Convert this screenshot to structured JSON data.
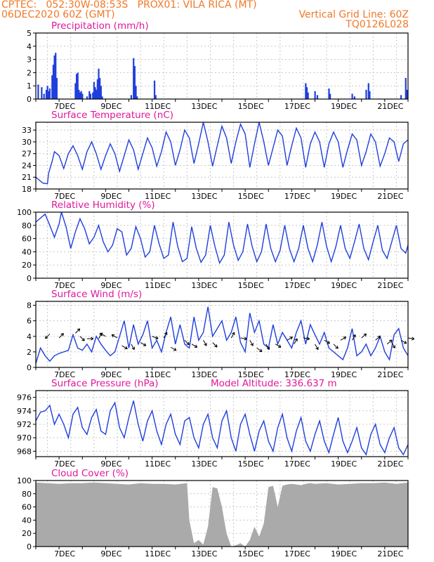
{
  "header": {
    "line1": "CPTEC:   052:30W-08:53S   PROX01: VILA RICA (MT)",
    "line2_left": "06DEC2020 60Z (GMT)",
    "line2_right": "Vertical Grid Line: 60Z",
    "line3_right": "TQ0126L028"
  },
  "colors": {
    "header": "#f07828",
    "title": "#e0189a",
    "line": "#1f3fdc",
    "bar": "#1f3fdc",
    "cloud": "#aaaaaa",
    "grid": "#c8c8c8"
  },
  "chart_data": [
    {
      "id": "precip",
      "type": "bar",
      "title": "Precipitation  (mm/h)",
      "xticks": [
        "7DEC",
        "9DEC",
        "11DEC",
        "13DEC",
        "15DEC",
        "17DEC",
        "19DEC",
        "21DEC"
      ],
      "ylim": [
        0,
        5
      ],
      "yticks": [
        0,
        1,
        2,
        3,
        4,
        5
      ],
      "bars": [
        [
          0.1,
          1.1
        ],
        [
          0.25,
          0.9
        ],
        [
          0.35,
          0.4
        ],
        [
          0.45,
          0.7
        ],
        [
          0.5,
          1.0
        ],
        [
          0.55,
          0.6
        ],
        [
          0.6,
          0.8
        ],
        [
          0.7,
          1.8
        ],
        [
          0.75,
          2.6
        ],
        [
          0.8,
          3.3
        ],
        [
          0.85,
          3.5
        ],
        [
          0.9,
          1.6
        ],
        [
          1.7,
          1.2
        ],
        [
          1.75,
          1.9
        ],
        [
          1.8,
          2.0
        ],
        [
          1.85,
          0.7
        ],
        [
          1.9,
          0.5
        ],
        [
          1.95,
          0.6
        ],
        [
          2.0,
          0.4
        ],
        [
          2.2,
          0.2
        ],
        [
          2.3,
          0.6
        ],
        [
          2.35,
          0.4
        ],
        [
          2.45,
          0.5
        ],
        [
          2.5,
          1.3
        ],
        [
          2.55,
          0.9
        ],
        [
          2.6,
          0.7
        ],
        [
          2.65,
          1.5
        ],
        [
          2.7,
          2.3
        ],
        [
          2.75,
          1.6
        ],
        [
          2.8,
          1.0
        ],
        [
          2.85,
          0.2
        ],
        [
          4.1,
          0.3
        ],
        [
          4.2,
          3.1
        ],
        [
          4.25,
          2.5
        ],
        [
          4.3,
          1.0
        ],
        [
          4.35,
          0.2
        ],
        [
          5.1,
          1.4
        ],
        [
          5.15,
          0.3
        ],
        [
          11.6,
          1.2
        ],
        [
          11.65,
          0.9
        ],
        [
          11.7,
          0.5
        ],
        [
          12.0,
          0.6
        ],
        [
          12.1,
          0.3
        ],
        [
          12.6,
          0.8
        ],
        [
          12.65,
          0.4
        ],
        [
          13.6,
          0.4
        ],
        [
          13.7,
          0.2
        ],
        [
          14.2,
          0.7
        ],
        [
          14.3,
          1.2
        ],
        [
          14.35,
          0.6
        ],
        [
          15.7,
          0.3
        ],
        [
          15.9,
          1.6
        ],
        [
          15.95,
          0.7
        ]
      ]
    },
    {
      "id": "temp",
      "type": "line",
      "title": "Surface Temperature  (nC)",
      "xticks": [
        "7DEC",
        "9DEC",
        "11DEC",
        "13DEC",
        "15DEC",
        "17DEC",
        "19DEC",
        "21DEC"
      ],
      "ylim": [
        18,
        35
      ],
      "yticks": [
        18,
        21,
        24,
        27,
        30,
        33
      ],
      "t": [
        0,
        0.3,
        0.5,
        0.55,
        0.7,
        0.8,
        1.0,
        1.2,
        1.4,
        1.6,
        1.8,
        2.0,
        2.2,
        2.4,
        2.6,
        2.8,
        3.0,
        3.2,
        3.4,
        3.6,
        3.8,
        4.0,
        4.2,
        4.4,
        4.6,
        4.8,
        5.0,
        5.2,
        5.4,
        5.6,
        5.8,
        6.0,
        6.2,
        6.4,
        6.6,
        6.8,
        7.0,
        7.2,
        7.4,
        7.6,
        7.8,
        8.0,
        8.2,
        8.4,
        8.6,
        8.8,
        9.0,
        9.2,
        9.4,
        9.6,
        9.8,
        10.0,
        10.2,
        10.4,
        10.6,
        10.8,
        11.0,
        11.2,
        11.4,
        11.6,
        11.8,
        12.0,
        12.2,
        12.4,
        12.6,
        12.8,
        13.0,
        13.2,
        13.4,
        13.6,
        13.8,
        14.0,
        14.2,
        14.4,
        14.6,
        14.8,
        15.0,
        15.2,
        15.4,
        15.6,
        15.8,
        16.0
      ],
      "v": [
        21,
        19.5,
        19.3,
        22,
        25,
        27.5,
        26.5,
        23.2,
        27,
        29,
        26.5,
        23,
        27.5,
        30,
        27,
        23,
        26.5,
        29.5,
        27,
        22.5,
        26.5,
        30.5,
        28,
        23,
        27,
        31,
        28.5,
        23.8,
        27.5,
        32.5,
        30,
        24,
        28,
        33,
        31,
        24.5,
        29.5,
        35,
        30,
        23.8,
        29,
        34,
        31,
        24.5,
        30,
        34.5,
        32,
        23.5,
        29.5,
        35,
        30,
        24,
        28.5,
        33,
        31.5,
        24,
        29,
        33.5,
        31,
        23.5,
        29.5,
        32.5,
        30,
        23.5,
        29.5,
        32.5,
        30,
        23.5,
        28,
        32,
        30.5,
        24,
        27.5,
        32,
        30,
        23.8,
        27,
        31,
        30,
        25,
        29.5,
        30.5
      ]
    },
    {
      "id": "rh",
      "type": "line",
      "title": "Relative Humidity  (%)",
      "xticks": [
        "7DEC",
        "9DEC",
        "11DEC",
        "13DEC",
        "15DEC",
        "17DEC",
        "19DEC",
        "21DEC"
      ],
      "ylim": [
        0,
        100
      ],
      "yticks": [
        0,
        20,
        40,
        60,
        80,
        100
      ],
      "t": [
        0,
        0.4,
        0.6,
        0.8,
        1.0,
        1.1,
        1.3,
        1.5,
        1.7,
        1.9,
        2.1,
        2.3,
        2.5,
        2.7,
        2.9,
        3.1,
        3.3,
        3.5,
        3.7,
        3.9,
        4.1,
        4.3,
        4.5,
        4.7,
        4.9,
        5.1,
        5.3,
        5.5,
        5.7,
        5.9,
        6.1,
        6.3,
        6.5,
        6.7,
        6.9,
        7.1,
        7.3,
        7.5,
        7.7,
        7.9,
        8.1,
        8.3,
        8.5,
        8.7,
        8.9,
        9.1,
        9.3,
        9.5,
        9.7,
        9.9,
        10.1,
        10.3,
        10.5,
        10.7,
        10.9,
        11.1,
        11.3,
        11.5,
        11.7,
        11.9,
        12.1,
        12.3,
        12.5,
        12.7,
        12.9,
        13.1,
        13.3,
        13.5,
        13.7,
        13.9,
        14.1,
        14.3,
        14.5,
        14.7,
        14.9,
        15.1,
        15.3,
        15.5,
        15.7,
        15.9,
        16.0
      ],
      "v": [
        85,
        97,
        80,
        62,
        82,
        100,
        78,
        45,
        70,
        90,
        75,
        52,
        62,
        80,
        55,
        40,
        50,
        75,
        70,
        35,
        45,
        78,
        60,
        32,
        40,
        80,
        52,
        30,
        35,
        85,
        48,
        25,
        30,
        78,
        45,
        24,
        35,
        80,
        48,
        23,
        35,
        85,
        50,
        27,
        40,
        82,
        48,
        25,
        40,
        82,
        45,
        25,
        42,
        80,
        45,
        25,
        45,
        80,
        45,
        25,
        50,
        85,
        48,
        25,
        48,
        80,
        45,
        30,
        55,
        82,
        45,
        28,
        55,
        80,
        42,
        30,
        55,
        80,
        45,
        38,
        50
      ]
    },
    {
      "id": "wind",
      "type": "line",
      "title": "Surface Wind  (m/s)",
      "xticks": [
        "7DEC",
        "9DEC",
        "11DEC",
        "13DEC",
        "15DEC",
        "17DEC",
        "19DEC",
        "21DEC"
      ],
      "ylim": [
        0,
        8.5
      ],
      "yticks": [
        0,
        2,
        4,
        6,
        8
      ],
      "t": [
        0,
        0.2,
        0.4,
        0.6,
        0.8,
        1.0,
        1.2,
        1.4,
        1.6,
        1.8,
        2.0,
        2.2,
        2.4,
        2.6,
        2.8,
        3.0,
        3.2,
        3.4,
        3.6,
        3.8,
        4.0,
        4.2,
        4.4,
        4.6,
        4.8,
        5.0,
        5.2,
        5.4,
        5.6,
        5.8,
        6.0,
        6.2,
        6.4,
        6.6,
        6.8,
        7.0,
        7.2,
        7.4,
        7.6,
        7.8,
        8.0,
        8.2,
        8.4,
        8.6,
        8.8,
        9.0,
        9.2,
        9.4,
        9.6,
        9.8,
        10.0,
        10.2,
        10.4,
        10.6,
        10.8,
        11.0,
        11.2,
        11.4,
        11.6,
        11.8,
        12.0,
        12.2,
        12.4,
        12.6,
        12.8,
        13.0,
        13.2,
        13.4,
        13.6,
        13.8,
        14.0,
        14.2,
        14.4,
        14.6,
        14.8,
        15.0,
        15.2,
        15.4,
        15.6,
        15.8,
        16.0
      ],
      "v": [
        0.5,
        2.5,
        1.5,
        0.8,
        1.5,
        1.8,
        2.0,
        2.2,
        4.2,
        2.5,
        2.2,
        3.0,
        2.0,
        4.0,
        3.0,
        2.2,
        1.5,
        2.0,
        4.0,
        6.0,
        2.5,
        5.5,
        3.0,
        4.2,
        6.0,
        2.5,
        3.5,
        2.0,
        4.5,
        6.5,
        3.0,
        5.5,
        3.0,
        2.5,
        6.5,
        3.5,
        4.5,
        7.8,
        4.0,
        5.0,
        6.0,
        3.5,
        4.5,
        6.5,
        3.2,
        2.0,
        7.0,
        4.5,
        6.0,
        3.0,
        2.5,
        5.5,
        3.0,
        4.5,
        3.5,
        2.5,
        4.5,
        6.0,
        3.0,
        5.5,
        4.2,
        3.0,
        4.5,
        2.5,
        2.0,
        1.5,
        1.0,
        2.5,
        5.0,
        1.5,
        2.0,
        3.0,
        1.5,
        2.5,
        4.0,
        2.0,
        1.0,
        4.2,
        5.0,
        2.5,
        1.5
      ],
      "arrows": [
        [
          0.6,
          4.3,
          135
        ],
        [
          1.0,
          3.8,
          315
        ],
        [
          1.7,
          4.4,
          315
        ],
        [
          1.9,
          4.0,
          45
        ],
        [
          2.2,
          3.7,
          0
        ],
        [
          2.7,
          3.7,
          300
        ],
        [
          3.0,
          4.0,
          210
        ],
        [
          3.5,
          3.8,
          210
        ],
        [
          3.7,
          2.8,
          30
        ],
        [
          4.1,
          3.0,
          60
        ],
        [
          4.5,
          3.2,
          30
        ],
        [
          5.0,
          4.0,
          20
        ],
        [
          5.5,
          3.8,
          300
        ],
        [
          5.8,
          2.6,
          30
        ],
        [
          6.4,
          3.5,
          45
        ],
        [
          6.7,
          3.0,
          30
        ],
        [
          7.2,
          3.5,
          60
        ],
        [
          7.6,
          3.2,
          45
        ],
        [
          8.4,
          3.8,
          300
        ],
        [
          8.8,
          3.8,
          10
        ],
        [
          9.2,
          3.5,
          60
        ],
        [
          9.5,
          2.5,
          35
        ],
        [
          9.9,
          3.0,
          60
        ],
        [
          10.3,
          3.0,
          30
        ],
        [
          10.8,
          3.5,
          330
        ],
        [
          11.1,
          3.0,
          300
        ],
        [
          11.5,
          3.8,
          10
        ],
        [
          12.0,
          3.0,
          60
        ],
        [
          12.4,
          3.5,
          30
        ],
        [
          12.8,
          3.0,
          45
        ],
        [
          13.1,
          3.5,
          330
        ],
        [
          13.6,
          3.5,
          300
        ],
        [
          14.0,
          3.8,
          320
        ],
        [
          14.6,
          3.5,
          320
        ],
        [
          15.1,
          3.0,
          320
        ],
        [
          15.3,
          3.2,
          60
        ],
        [
          15.7,
          3.5,
          30
        ],
        [
          16.0,
          3.8,
          10
        ]
      ]
    },
    {
      "id": "pres",
      "type": "line",
      "title": "Surface Pressure  (hPa)",
      "subtitle": "Model Altitude: 336.637  m",
      "xticks": [
        "7DEC",
        "9DEC",
        "11DEC",
        "13DEC",
        "15DEC",
        "17DEC",
        "19DEC",
        "21DEC"
      ],
      "ylim": [
        967.2,
        977
      ],
      "yticks": [
        968,
        970,
        972,
        974,
        976
      ],
      "t": [
        0,
        0.2,
        0.4,
        0.6,
        0.8,
        1.0,
        1.2,
        1.4,
        1.6,
        1.8,
        2.0,
        2.2,
        2.4,
        2.6,
        2.8,
        3.0,
        3.2,
        3.4,
        3.6,
        3.8,
        4.0,
        4.2,
        4.4,
        4.6,
        4.8,
        5.0,
        5.2,
        5.4,
        5.6,
        5.8,
        6.0,
        6.2,
        6.4,
        6.6,
        6.8,
        7.0,
        7.2,
        7.4,
        7.6,
        7.8,
        8.0,
        8.2,
        8.4,
        8.6,
        8.8,
        9.0,
        9.2,
        9.4,
        9.6,
        9.8,
        10.0,
        10.2,
        10.4,
        10.6,
        10.8,
        11.0,
        11.2,
        11.4,
        11.6,
        11.8,
        12.0,
        12.2,
        12.4,
        12.6,
        12.8,
        13.0,
        13.2,
        13.4,
        13.6,
        13.8,
        14.0,
        14.2,
        14.4,
        14.6,
        14.8,
        15.0,
        15.2,
        15.4,
        15.6,
        15.8,
        16.0
      ],
      "v": [
        972.5,
        973.8,
        974.0,
        974.8,
        972.0,
        973.5,
        972.0,
        970.0,
        973.5,
        974.5,
        971.5,
        970.5,
        973.0,
        974.2,
        971.0,
        970.5,
        974.0,
        975.2,
        971.5,
        970.0,
        973.0,
        975.5,
        972.0,
        969.5,
        972.5,
        974.0,
        971.0,
        969.0,
        972.0,
        973.5,
        970.5,
        969.0,
        972.5,
        973.0,
        970.0,
        968.5,
        972.0,
        973.5,
        970.0,
        968.5,
        972.5,
        974.0,
        970.0,
        968.0,
        972.0,
        973.5,
        970.5,
        968.0,
        971.0,
        972.5,
        969.5,
        968.0,
        971.5,
        973.5,
        970.0,
        968.0,
        971.0,
        973.0,
        969.5,
        968.0,
        970.5,
        972.5,
        969.5,
        967.8,
        970.5,
        973.0,
        969.5,
        967.8,
        969.5,
        971.5,
        968.5,
        967.5,
        970.5,
        972.0,
        969.0,
        967.8,
        970.0,
        971.5,
        968.5,
        967.5,
        969.0
      ]
    },
    {
      "id": "cloud",
      "type": "area",
      "title": "Cloud Cover  (%)",
      "xticks": [
        "7DEC",
        "9DEC",
        "11DEC",
        "13DEC",
        "15DEC",
        "17DEC",
        "19DEC",
        "21DEC"
      ],
      "ylim": [
        0,
        100
      ],
      "yticks": [
        0,
        20,
        40,
        60,
        80,
        100
      ],
      "t": [
        0,
        0.5,
        1.0,
        1.5,
        2.0,
        2.5,
        3.0,
        3.5,
        4.0,
        4.5,
        5.0,
        5.5,
        6.0,
        6.5,
        6.6,
        6.8,
        7.0,
        7.2,
        7.4,
        7.6,
        7.8,
        8.0,
        8.2,
        8.4,
        8.6,
        8.8,
        9.0,
        9.2,
        9.4,
        9.6,
        9.8,
        10.0,
        10.2,
        10.4,
        10.6,
        10.8,
        11.0,
        11.2,
        11.4,
        11.6,
        11.8,
        12.0,
        12.5,
        13.0,
        13.5,
        14.0,
        14.5,
        15.0,
        15.5,
        16.0
      ],
      "v": [
        97,
        96,
        95,
        96,
        96,
        97,
        96,
        95,
        94,
        96,
        95,
        95,
        94,
        96,
        40,
        5,
        10,
        3,
        30,
        90,
        88,
        60,
        20,
        0,
        2,
        5,
        0,
        10,
        30,
        15,
        35,
        90,
        92,
        60,
        92,
        94,
        95,
        94,
        93,
        95,
        96,
        95,
        96,
        94,
        95,
        96,
        96,
        97,
        95,
        97
      ]
    }
  ]
}
